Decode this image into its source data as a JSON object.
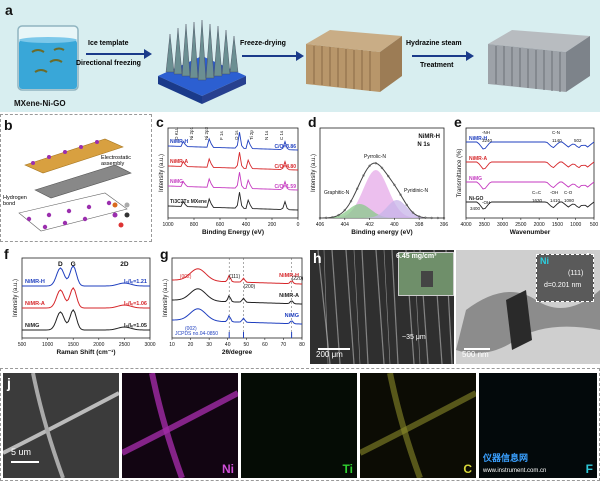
{
  "panel_labels": {
    "a": "a",
    "b": "b",
    "c": "c",
    "d": "d",
    "e": "e",
    "f": "f",
    "g": "g",
    "h": "h",
    "i": "i",
    "j": "j"
  },
  "panel_a": {
    "material": "MXene-Ni-GO",
    "step1_top": "Ice template",
    "step1_bottom": "Directional freezing",
    "step2": "Freeze-drying",
    "step3_top": "Hydrazine steam",
    "step3_bottom": "Treatment"
  },
  "panel_b": {
    "hbond": "Hydrogen bond",
    "electrostatic": "Electrostatic assembly",
    "legend": [
      "Ti",
      "H",
      "Ni",
      "C",
      "O"
    ]
  },
  "chart_c": {
    "type": "line",
    "xlabel": "Binding Energy (eV)",
    "ylabel": "Intensity (a.u.)",
    "xticks": [
      "1000",
      "800",
      "600",
      "400",
      "200",
      "0"
    ],
    "series": [
      {
        "name": "NiMR-H",
        "color": "#1f3fbf",
        "ratio": "C/O=3.86"
      },
      {
        "name": "NiMR-A",
        "color": "#d6262a",
        "ratio": "C/O=4.80"
      },
      {
        "name": "NiMG",
        "color": "#c53ac0",
        "ratio": "C/O=1.59"
      },
      {
        "name": "Ti3C2Tx MXene",
        "color": "#222222",
        "ratio": ""
      }
    ],
    "peak_labels": [
      "O KLL",
      "Ni 2p1",
      "Ni 2p3",
      "F 1s",
      "O 1s",
      "Ti 2p",
      "N 1s",
      "C 1s"
    ]
  },
  "chart_d": {
    "type": "line",
    "title": "NiMR-H",
    "subtitle": "N 1s",
    "xlabel": "Binding energy (eV)",
    "ylabel": "Intensity (a.u.)",
    "xticks": [
      "406",
      "404",
      "402",
      "400",
      "398",
      "396"
    ],
    "components": [
      "Pyrrolic-N",
      "Graphitic-N",
      "Pyridinic-N"
    ]
  },
  "chart_e": {
    "type": "line",
    "xlabel": "Wavenumber",
    "ylabel": "Transmittance (%)",
    "xticks": [
      "4000",
      "3500",
      "3000",
      "2500",
      "2000",
      "1500",
      "1000",
      "500"
    ],
    "series": [
      {
        "name": "NiMR-H",
        "color": "#1f3fbf"
      },
      {
        "name": "NiMR-A",
        "color": "#d6262a"
      },
      {
        "name": "NiMG",
        "color": "#c53ac0"
      },
      {
        "name": "Ni-GO",
        "color": "#222222"
      }
    ],
    "annotations": [
      "-NH",
      "3240",
      "C-N",
      "1140",
      "502",
      "C=C",
      "-OH",
      "C-O",
      "1630",
      "1410",
      "1080",
      "3400",
      "-OH"
    ]
  },
  "chart_f": {
    "type": "line",
    "xlabel": "Raman Shift (cm⁻¹)",
    "ylabel": "Intensity (a.u.)",
    "xticks": [
      "500",
      "1000",
      "1500",
      "2000",
      "2500",
      "3000"
    ],
    "peaks": [
      "D",
      "G",
      "2D"
    ],
    "series": [
      {
        "name": "NiMR-H",
        "color": "#1f3fbf",
        "ratio": "I₀/Iₑ=1.21"
      },
      {
        "name": "NiMR-A",
        "color": "#d6262a",
        "ratio": "I₀/Iₑ=1.06"
      },
      {
        "name": "NiMG",
        "color": "#222222",
        "ratio": "I₀/Iₑ=1.05"
      }
    ]
  },
  "chart_g": {
    "type": "line",
    "xlabel": "2θ/degree",
    "ylabel": "Intensity (a.u.)",
    "xticks": [
      "10",
      "20",
      "30",
      "40",
      "50",
      "60",
      "70",
      "80"
    ],
    "series": [
      {
        "name": "NiMR-H",
        "color": "#d6262a"
      },
      {
        "name": "NiMR-A",
        "color": "#222222"
      },
      {
        "name": "NiMG",
        "color": "#1f3fbf"
      }
    ],
    "peak_labels": [
      "(002)",
      "(111)",
      "(200)",
      "(220)",
      "(002)"
    ],
    "reference": "JCPDS no.04-0850"
  },
  "panel_h": {
    "inset": "6.45 mg/cm³",
    "scale": "200 μm",
    "spacing": "~35 μm"
  },
  "panel_i": {
    "element": "Ni",
    "plane": "(111)",
    "dspacing": "d=0.201 nm",
    "scale": "500 nm"
  },
  "panel_j": {
    "scale": "5 um",
    "maps": [
      "Ni",
      "Ti",
      "C",
      "F"
    ]
  },
  "watermark": {
    "brand": "仪器信息网",
    "url": "www.instrument.com.cn"
  }
}
